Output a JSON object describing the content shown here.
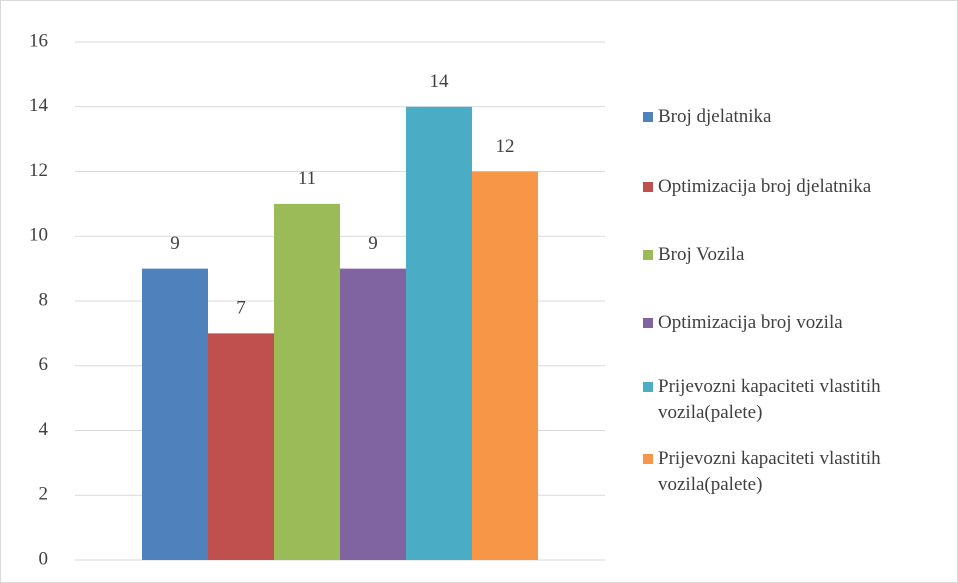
{
  "chart_data": {
    "type": "bar",
    "categories": [
      null
    ],
    "series": [
      {
        "name": "Broj djelatnika",
        "color": "#4f81bd",
        "values": [
          9
        ]
      },
      {
        "name": "Optimizacija broj djelatnika",
        "color": "#c0504d",
        "values": [
          7
        ]
      },
      {
        "name": "Broj Vozila",
        "color": "#9bbb59",
        "values": [
          11
        ]
      },
      {
        "name": "Optimizacija broj vozila",
        "color": "#8064a2",
        "values": [
          9
        ]
      },
      {
        "name": "Prijevozni kapaciteti vlastitih vozila(palete)",
        "color": "#4bacc6",
        "values": [
          14
        ]
      },
      {
        "name": "Prijevozni kapaciteti vlastitih vozila(palete)",
        "color": "#f79646",
        "values": [
          12
        ]
      }
    ],
    "ylim": [
      0,
      16
    ],
    "yticks": [
      0,
      2,
      4,
      6,
      8,
      10,
      12,
      14,
      16
    ],
    "grid": true,
    "legend": "right"
  }
}
